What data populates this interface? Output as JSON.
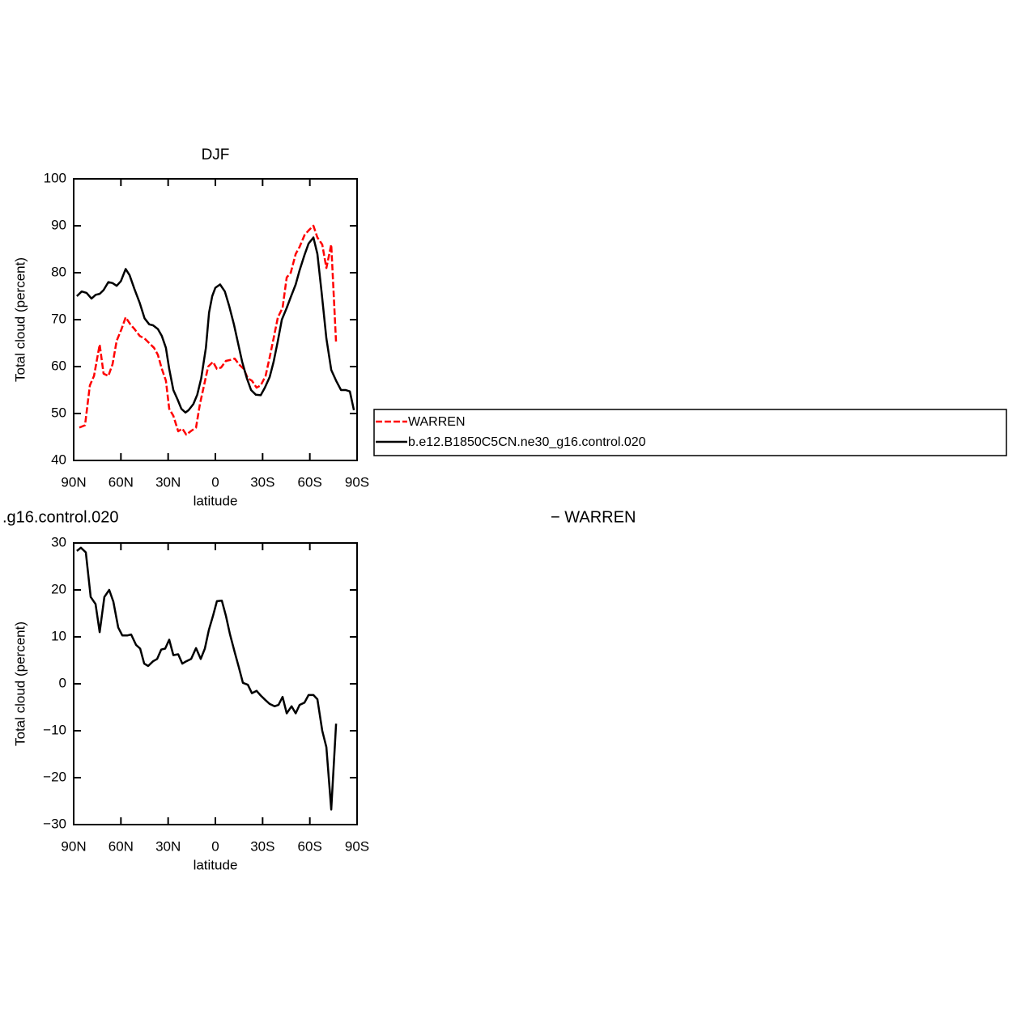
{
  "chart_data": [
    {
      "type": "line",
      "title": "DJF",
      "x_label": "latitude",
      "y_label": "Total cloud (percent)",
      "xlim": [
        90,
        -90
      ],
      "ylim": [
        40,
        100
      ],
      "xticks": [
        {
          "value": 90,
          "label": "90N"
        },
        {
          "value": 60,
          "label": "60N"
        },
        {
          "value": 30,
          "label": "30N"
        },
        0,
        {
          "value": -30,
          "label": "30S"
        },
        {
          "value": -60,
          "label": "60S"
        },
        {
          "value": -90,
          "label": "90S"
        }
      ],
      "yticks": [
        40,
        50,
        60,
        70,
        80,
        90,
        100
      ],
      "legend": "right",
      "series": [
        {
          "name": "WARREN",
          "color": "#ff0000",
          "dashed": true,
          "x": [
            86.4,
            82.8,
            79.7,
            77.1,
            73.5,
            71,
            68,
            65.3,
            62.7,
            59.6,
            57,
            54,
            51.4,
            48,
            45,
            42,
            39,
            36.5,
            34,
            31.4,
            29.3,
            26.7,
            23.6,
            21,
            18.5,
            15.4,
            12.3,
            9.8,
            7.2,
            4.6,
            1.5,
            -1,
            -3.6,
            -6.7,
            -9.3,
            -12.3,
            -14.9,
            -18,
            -20.6,
            -23.2,
            -26.2,
            -28.8,
            -31.9,
            -34.5,
            -37,
            -39.7,
            -42.7,
            -45.3,
            -47.9,
            -51,
            -53.5,
            -56.6,
            -59.2,
            -62.3,
            -64.8,
            -67.9,
            -70.5,
            -73.6,
            -76.7
          ],
          "values": [
            47,
            47.5,
            56,
            58,
            64.7,
            58.5,
            58,
            60.5,
            65.5,
            68,
            70.5,
            69,
            68,
            66.5,
            66,
            65,
            64,
            62.5,
            59.5,
            57,
            51,
            49.5,
            46.2,
            46.8,
            45.5,
            46.3,
            47,
            52,
            56,
            60,
            61,
            59.5,
            59.8,
            61.2,
            61.4,
            61.7,
            60.5,
            59.5,
            57.5,
            57,
            55.5,
            56,
            58,
            62,
            66,
            70.5,
            72.5,
            79,
            80,
            84,
            85.5,
            88,
            89,
            90,
            87.5,
            86,
            81,
            86,
            65
          ]
        },
        {
          "name": "b.e12.B1850C5CN.ne30_g16.control.020",
          "color": "#000000",
          "dashed": false,
          "x": [
            88,
            84.9,
            81.8,
            78.7,
            76,
            73.5,
            71,
            68,
            65.3,
            62.7,
            60,
            57,
            54.5,
            51.4,
            48,
            45,
            42,
            39.6,
            36.5,
            34,
            31.4,
            29.3,
            26.7,
            24,
            21.6,
            19,
            17,
            14,
            11.5,
            9,
            6,
            4,
            2,
            0,
            -3,
            -6,
            -8.7,
            -11.8,
            -14.4,
            -17,
            -20,
            -22.7,
            -25.7,
            -28.8,
            -31.4,
            -34.5,
            -37,
            -39.7,
            -42.2,
            -45.3,
            -47.9,
            -51,
            -53.5,
            -56.6,
            -59.2,
            -62.3,
            -64.8,
            -67.4,
            -70.5,
            -73.6,
            -76.7,
            -79.8,
            -82.8,
            -85.4,
            -88
          ],
          "values": [
            75,
            76,
            75.7,
            74.5,
            75.3,
            75.5,
            76.3,
            78,
            77.8,
            77.2,
            78.2,
            80.8,
            79.5,
            76.5,
            73.5,
            70.3,
            69,
            68.8,
            68,
            66.5,
            64,
            59.5,
            55,
            53,
            51,
            50.2,
            50.7,
            52,
            54,
            57.5,
            64,
            71.5,
            75,
            76.8,
            77.5,
            76,
            73,
            69,
            65,
            61,
            57.5,
            55,
            54,
            53.9,
            55.5,
            57.8,
            61,
            65.5,
            70,
            72.5,
            74.8,
            77.5,
            80.5,
            83.8,
            86.2,
            87.5,
            84,
            76,
            66,
            59.3,
            57,
            55,
            55,
            54.7,
            50.7
          ]
        }
      ]
    },
    {
      "type": "line",
      "title_left": ".g16.control.020",
      "title_right": "− WARREN",
      "x_label": "latitude",
      "y_label": "Total cloud (percent)",
      "xlim": [
        90,
        -90
      ],
      "ylim": [
        -30,
        30
      ],
      "xticks": [
        {
          "value": 90,
          "label": "90N"
        },
        {
          "value": 60,
          "label": "60N"
        },
        {
          "value": 30,
          "label": "30N"
        },
        0,
        {
          "value": -30,
          "label": "30S"
        },
        {
          "value": -60,
          "label": "60S"
        },
        {
          "value": -90,
          "label": "90S"
        }
      ],
      "yticks": [
        {
          "value": -30,
          "label": "−30"
        },
        {
          "value": -20,
          "label": "−20"
        },
        {
          "value": -10,
          "label": "−10"
        },
        0,
        10,
        20,
        30
      ],
      "series": [
        {
          "color": "#000000",
          "dashed": false,
          "x": [
            88,
            85.4,
            82.3,
            79.2,
            76.1,
            73.5,
            70.5,
            67.4,
            64.8,
            61.7,
            59.1,
            56,
            53.5,
            50.4,
            47.8,
            45.2,
            42.7,
            39.6,
            37,
            34.4,
            31.9,
            29.3,
            26.7,
            23.6,
            21,
            18.5,
            15.4,
            12.3,
            9.3,
            6.7,
            4.1,
            1.5,
            -1,
            -4.1,
            -6.7,
            -9.3,
            -12.3,
            -14.9,
            -17.5,
            -20.6,
            -23.2,
            -26.2,
            -28.8,
            -31.9,
            -34.5,
            -37.6,
            -40.1,
            -42.7,
            -45.3,
            -48.4,
            -51,
            -53.5,
            -56.6,
            -59.2,
            -62.3,
            -64.8,
            -67.9,
            -70.5,
            -73.6,
            -76.7
          ],
          "values": [
            28.3,
            29,
            28,
            18.5,
            17,
            11,
            18.5,
            20,
            17.5,
            12,
            10.3,
            10.3,
            10.5,
            8.3,
            7.5,
            4.3,
            3.8,
            4.8,
            5.3,
            7.3,
            7.5,
            9.4,
            6.1,
            6.3,
            4.3,
            4.8,
            5.3,
            7.6,
            5.3,
            7.5,
            11.5,
            14.5,
            17.6,
            17.7,
            14.5,
            10.5,
            6.7,
            3.5,
            0.2,
            -0.2,
            -2,
            -1.5,
            -2.5,
            -3.5,
            -4.3,
            -4.8,
            -4.5,
            -2.8,
            -6.3,
            -4.8,
            -6.3,
            -4.5,
            -4,
            -2.4,
            -2.4,
            -3.3,
            -10,
            -13.5,
            -26.8,
            -8.5
          ]
        }
      ]
    }
  ]
}
